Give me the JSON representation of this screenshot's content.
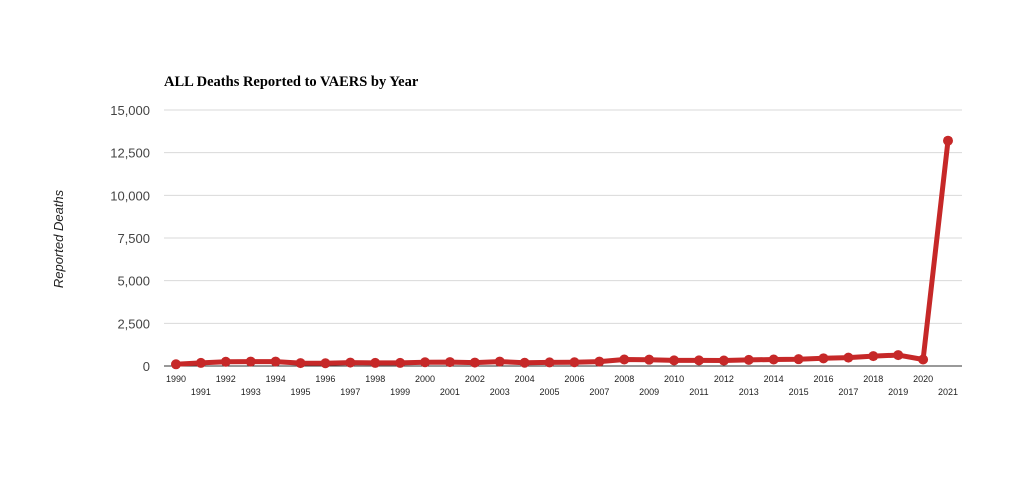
{
  "chart_data": {
    "type": "line",
    "title": "ALL Deaths Reported to VAERS by Year",
    "xlabel": "",
    "ylabel": "Reported Deaths",
    "ylim": [
      0,
      15000
    ],
    "yticks": [
      "0",
      "2,500",
      "5,000",
      "7,500",
      "10,000",
      "12,500",
      "15,000"
    ],
    "ytick_values": [
      0,
      2500,
      5000,
      7500,
      10000,
      12500,
      15000
    ],
    "grid": true,
    "legend": "none",
    "color": "#c62828",
    "x": [
      "1990",
      "1991",
      "1992",
      "1993",
      "1994",
      "1995",
      "1996",
      "1997",
      "1998",
      "1999",
      "2000",
      "2001",
      "2002",
      "2003",
      "2004",
      "2005",
      "2006",
      "2007",
      "2008",
      "2009",
      "2010",
      "2011",
      "2012",
      "2013",
      "2014",
      "2015",
      "2016",
      "2017",
      "2018",
      "2019",
      "2020",
      "2021"
    ],
    "values": [
      100,
      180,
      250,
      260,
      260,
      170,
      160,
      200,
      180,
      180,
      220,
      230,
      200,
      260,
      190,
      210,
      220,
      260,
      380,
      370,
      330,
      330,
      320,
      360,
      380,
      400,
      450,
      490,
      580,
      640,
      380,
      13200
    ]
  }
}
